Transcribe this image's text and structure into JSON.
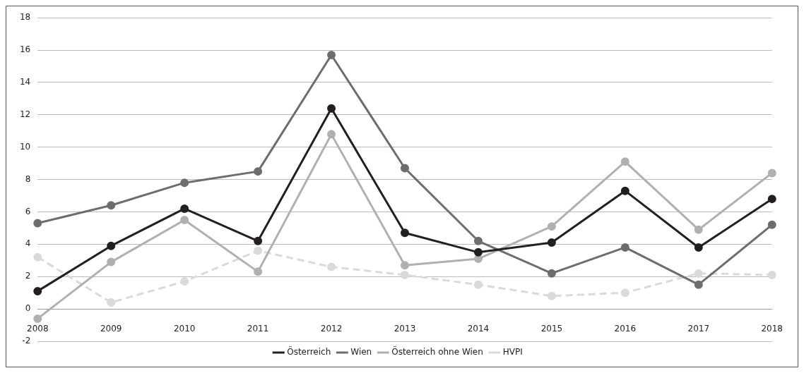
{
  "chart_data": {
    "type": "line",
    "categories": [
      "2008",
      "2009",
      "2010",
      "2011",
      "2012",
      "2013",
      "2014",
      "2015",
      "2016",
      "2017",
      "2018"
    ],
    "series": [
      {
        "name": "Österreich",
        "color": "#231f20",
        "values": [
          1.1,
          3.9,
          6.2,
          4.2,
          12.4,
          4.7,
          3.5,
          4.1,
          7.3,
          3.8,
          6.8
        ]
      },
      {
        "name": "Wien",
        "color": "#6d6d6d",
        "values": [
          5.3,
          6.4,
          7.8,
          8.5,
          15.7,
          8.7,
          4.2,
          2.2,
          3.8,
          1.5,
          5.2
        ]
      },
      {
        "name": "Österreich ohne Wien",
        "color": "#b0b0b0",
        "values": [
          -0.6,
          2.9,
          5.5,
          2.3,
          10.8,
          2.7,
          3.1,
          5.1,
          9.1,
          4.9,
          8.4
        ]
      },
      {
        "name": "HVPI",
        "color": "#dadada",
        "line_style": "dashed",
        "values": [
          3.2,
          0.4,
          1.7,
          3.6,
          2.6,
          2.1,
          1.5,
          0.8,
          1.0,
          2.2,
          2.1
        ]
      }
    ],
    "ylim": [
      -2,
      18
    ],
    "yticks": [
      -2,
      0,
      2,
      4,
      6,
      8,
      10,
      12,
      14,
      16,
      18
    ],
    "grid": "y",
    "legend": "bottom",
    "marker": "circle",
    "line_style": "solid"
  }
}
